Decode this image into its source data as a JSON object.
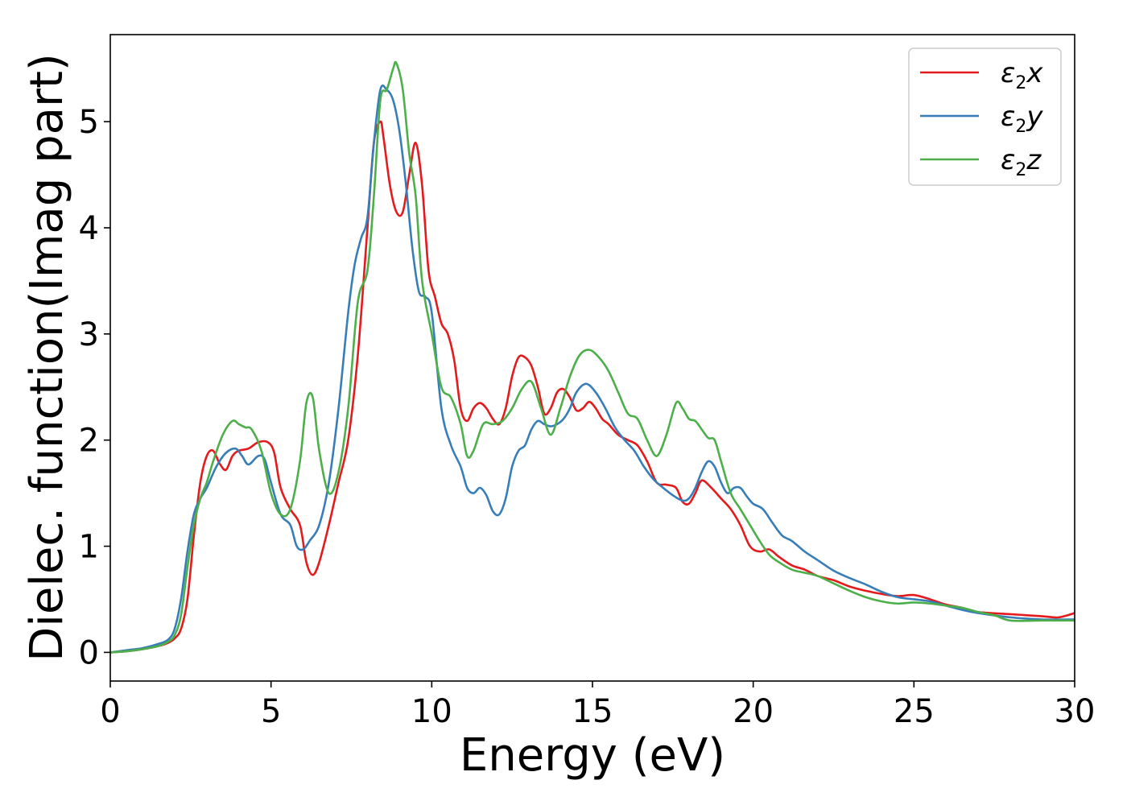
{
  "chart_data": {
    "type": "line",
    "title": "",
    "xlabel": "Energy (eV)",
    "ylabel": "Dielec. function(Imag part)",
    "xlim": [
      0,
      30
    ],
    "ylim": [
      -0.27,
      5.82
    ],
    "xticks": [
      0,
      5,
      10,
      15,
      20,
      25,
      30
    ],
    "yticks": [
      0,
      1,
      2,
      3,
      4,
      5
    ],
    "grid": false,
    "legend_position": "top-right",
    "series": [
      {
        "name": "ε₂x",
        "legend_base": "ε",
        "legend_sub": "2",
        "legend_axis": "x",
        "color": "#e41a1c",
        "x": [
          0,
          0.5,
          1,
          1.5,
          1.8,
          2.0,
          2.2,
          2.4,
          2.6,
          2.8,
          3.0,
          3.2,
          3.4,
          3.6,
          3.8,
          4.0,
          4.3,
          4.6,
          4.9,
          5.1,
          5.3,
          5.6,
          5.9,
          6.1,
          6.3,
          6.5,
          6.8,
          7.1,
          7.4,
          7.7,
          8.0,
          8.2,
          8.4,
          8.5,
          8.7,
          8.9,
          9.1,
          9.3,
          9.5,
          9.7,
          9.9,
          10.1,
          10.3,
          10.5,
          10.7,
          10.9,
          11.1,
          11.3,
          11.5,
          11.7,
          11.9,
          12.1,
          12.3,
          12.5,
          12.7,
          12.9,
          13.1,
          13.3,
          13.5,
          13.7,
          13.9,
          14.1,
          14.3,
          14.5,
          14.7,
          14.9,
          15.1,
          15.3,
          15.5,
          15.8,
          16.1,
          16.4,
          16.7,
          17.0,
          17.3,
          17.6,
          17.8,
          18.0,
          18.2,
          18.4,
          18.7,
          19.0,
          19.3,
          19.6,
          19.9,
          20.2,
          20.5,
          20.8,
          21.2,
          21.6,
          22.0,
          22.5,
          23.0,
          23.5,
          24.0,
          24.5,
          25.0,
          25.5,
          26.0,
          26.5,
          27.0,
          28.0,
          29.0,
          29.5,
          30.0
        ],
        "y": [
          0,
          0.01,
          0.03,
          0.06,
          0.09,
          0.13,
          0.22,
          0.5,
          1.1,
          1.6,
          1.85,
          1.9,
          1.78,
          1.72,
          1.85,
          1.9,
          1.92,
          1.98,
          1.98,
          1.88,
          1.55,
          1.35,
          1.2,
          0.85,
          0.73,
          0.85,
          1.2,
          1.6,
          2.0,
          2.8,
          4.0,
          4.8,
          5.0,
          4.85,
          4.4,
          4.15,
          4.15,
          4.5,
          4.8,
          4.4,
          3.6,
          3.35,
          3.1,
          3.0,
          2.75,
          2.3,
          2.18,
          2.3,
          2.35,
          2.3,
          2.2,
          2.15,
          2.3,
          2.6,
          2.78,
          2.78,
          2.7,
          2.5,
          2.25,
          2.3,
          2.45,
          2.48,
          2.4,
          2.28,
          2.3,
          2.36,
          2.3,
          2.2,
          2.15,
          2.05,
          2.0,
          1.95,
          1.8,
          1.6,
          1.58,
          1.55,
          1.42,
          1.4,
          1.5,
          1.62,
          1.55,
          1.45,
          1.35,
          1.2,
          1.0,
          0.95,
          0.97,
          0.9,
          0.82,
          0.78,
          0.72,
          0.68,
          0.62,
          0.58,
          0.55,
          0.53,
          0.54,
          0.5,
          0.45,
          0.42,
          0.38,
          0.36,
          0.34,
          0.33,
          0.37
        ]
      },
      {
        "name": "ε₂y",
        "legend_base": "ε",
        "legend_sub": "2",
        "legend_axis": "y",
        "color": "#377eb8",
        "x": [
          0,
          0.5,
          1,
          1.5,
          1.8,
          2.0,
          2.2,
          2.4,
          2.6,
          2.8,
          3.0,
          3.3,
          3.6,
          3.9,
          4.1,
          4.3,
          4.6,
          4.8,
          5.0,
          5.3,
          5.6,
          5.8,
          6.0,
          6.2,
          6.5,
          6.8,
          7.1,
          7.4,
          7.6,
          7.8,
          8.0,
          8.2,
          8.4,
          8.6,
          8.8,
          9.0,
          9.2,
          9.4,
          9.6,
          9.8,
          10.0,
          10.3,
          10.6,
          10.9,
          11.1,
          11.3,
          11.5,
          11.7,
          11.9,
          12.1,
          12.3,
          12.5,
          12.7,
          12.9,
          13.1,
          13.3,
          13.5,
          13.7,
          13.9,
          14.1,
          14.3,
          14.5,
          14.8,
          15.1,
          15.4,
          15.7,
          16.0,
          16.3,
          16.6,
          16.9,
          17.2,
          17.5,
          17.8,
          18.0,
          18.2,
          18.4,
          18.6,
          18.8,
          19.0,
          19.2,
          19.4,
          19.6,
          19.8,
          20.0,
          20.3,
          20.6,
          20.9,
          21.2,
          21.6,
          22.0,
          22.5,
          23.0,
          23.5,
          24.0,
          24.5,
          25.0,
          25.5,
          26.0,
          26.5,
          27.0,
          28.0,
          29.0,
          30.0
        ],
        "y": [
          0,
          0.02,
          0.04,
          0.08,
          0.12,
          0.22,
          0.5,
          0.95,
          1.3,
          1.45,
          1.55,
          1.75,
          1.88,
          1.92,
          1.85,
          1.77,
          1.85,
          1.82,
          1.6,
          1.3,
          1.2,
          1.0,
          0.97,
          1.05,
          1.2,
          1.6,
          2.3,
          3.2,
          3.65,
          3.9,
          4.1,
          4.8,
          5.3,
          5.3,
          5.2,
          4.9,
          4.4,
          3.8,
          3.4,
          3.35,
          3.2,
          2.3,
          1.95,
          1.75,
          1.55,
          1.5,
          1.55,
          1.48,
          1.33,
          1.3,
          1.45,
          1.75,
          1.9,
          1.95,
          2.1,
          2.18,
          2.15,
          2.13,
          2.15,
          2.2,
          2.3,
          2.45,
          2.53,
          2.45,
          2.3,
          2.12,
          2.0,
          1.9,
          1.75,
          1.63,
          1.55,
          1.48,
          1.43,
          1.45,
          1.55,
          1.7,
          1.8,
          1.75,
          1.6,
          1.5,
          1.55,
          1.55,
          1.47,
          1.4,
          1.35,
          1.22,
          1.1,
          1.05,
          0.95,
          0.87,
          0.77,
          0.7,
          0.64,
          0.57,
          0.52,
          0.5,
          0.48,
          0.44,
          0.4,
          0.37,
          0.33,
          0.31,
          0.31
        ]
      },
      {
        "name": "ε₂z",
        "legend_base": "ε",
        "legend_sub": "2",
        "legend_axis": "z",
        "color": "#4daf4a",
        "x": [
          0,
          0.5,
          1,
          1.5,
          1.8,
          2.0,
          2.2,
          2.4,
          2.6,
          2.8,
          3.0,
          3.2,
          3.5,
          3.8,
          4.0,
          4.2,
          4.4,
          4.7,
          5.0,
          5.3,
          5.6,
          5.9,
          6.1,
          6.3,
          6.5,
          6.8,
          7.1,
          7.4,
          7.7,
          8.0,
          8.2,
          8.4,
          8.6,
          8.8,
          8.9,
          9.1,
          9.3,
          9.5,
          9.7,
          10.0,
          10.3,
          10.6,
          10.9,
          11.1,
          11.3,
          11.6,
          11.9,
          12.2,
          12.5,
          12.8,
          13.1,
          13.4,
          13.7,
          14.0,
          14.3,
          14.6,
          14.9,
          15.2,
          15.5,
          15.8,
          16.1,
          16.4,
          16.7,
          17.0,
          17.3,
          17.6,
          17.8,
          18.0,
          18.2,
          18.4,
          18.6,
          18.8,
          19.0,
          19.3,
          19.6,
          19.9,
          20.2,
          20.5,
          20.8,
          21.2,
          21.6,
          22.0,
          22.5,
          23.0,
          23.5,
          24.0,
          24.5,
          25.0,
          25.5,
          26.0,
          26.5,
          27.0,
          27.5,
          28.0,
          29.0,
          30.0
        ],
        "y": [
          0,
          0.01,
          0.03,
          0.06,
          0.1,
          0.16,
          0.35,
          0.8,
          1.2,
          1.45,
          1.6,
          1.8,
          2.05,
          2.18,
          2.15,
          2.12,
          2.1,
          1.9,
          1.5,
          1.3,
          1.35,
          1.8,
          2.35,
          2.4,
          1.9,
          1.5,
          1.7,
          2.3,
          3.3,
          3.6,
          4.3,
          5.2,
          5.3,
          5.5,
          5.55,
          5.3,
          4.7,
          4.3,
          3.5,
          3.0,
          2.5,
          2.4,
          2.15,
          1.85,
          1.9,
          2.15,
          2.15,
          2.18,
          2.3,
          2.48,
          2.55,
          2.3,
          2.05,
          2.3,
          2.6,
          2.8,
          2.85,
          2.78,
          2.65,
          2.45,
          2.25,
          2.2,
          2.0,
          1.85,
          2.05,
          2.35,
          2.3,
          2.2,
          2.18,
          2.1,
          2.02,
          2.0,
          1.8,
          1.5,
          1.35,
          1.2,
          1.05,
          0.92,
          0.85,
          0.78,
          0.75,
          0.72,
          0.65,
          0.58,
          0.52,
          0.48,
          0.46,
          0.47,
          0.46,
          0.44,
          0.42,
          0.38,
          0.35,
          0.3,
          0.3,
          0.3
        ]
      }
    ]
  }
}
